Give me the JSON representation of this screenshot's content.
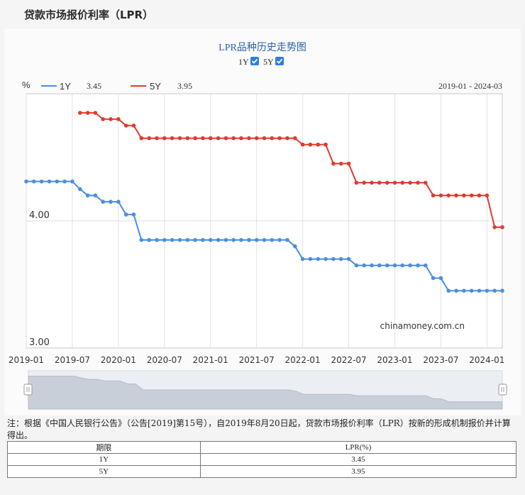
{
  "page": {
    "title": "贷款市场报价利率（LPR）",
    "note": "注：根据《中国人民银行公告》（公告[2019]第15号），自2019年8月20日起，贷款市场报价利率（LPR）按新的形成机制报价并计算得出。"
  },
  "chart_data": {
    "type": "line",
    "title": "LPR品种历史走势图",
    "ylabel": "%",
    "date_range": "2019-01 - 2024-03",
    "watermark": "chinamoney.com.cn",
    "ylim": [
      3.0,
      5.0
    ],
    "yticks": [
      {
        "value": 3.0,
        "label": "3.00"
      },
      {
        "value": 4.0,
        "label": "4.00"
      }
    ],
    "xticks": [
      "2019-01",
      "2019-07",
      "2020-01",
      "2020-07",
      "2021-01",
      "2021-07",
      "2022-01",
      "2022-07",
      "2023-01",
      "2023-07",
      "2024-01"
    ],
    "x_start": "2019-01",
    "grid": true,
    "legend_position": "top-left",
    "series": [
      {
        "name": "1Y",
        "latest": "3.45",
        "checked": true,
        "color": "#4a8ee0",
        "points": [
          [
            "2019-01",
            4.31
          ],
          [
            "2019-02",
            4.31
          ],
          [
            "2019-03",
            4.31
          ],
          [
            "2019-04",
            4.31
          ],
          [
            "2019-05",
            4.31
          ],
          [
            "2019-06",
            4.31
          ],
          [
            "2019-07",
            4.31
          ],
          [
            "2019-08",
            4.25
          ],
          [
            "2019-09",
            4.2
          ],
          [
            "2019-10",
            4.2
          ],
          [
            "2019-11",
            4.15
          ],
          [
            "2019-12",
            4.15
          ],
          [
            "2020-01",
            4.15
          ],
          [
            "2020-02",
            4.05
          ],
          [
            "2020-03",
            4.05
          ],
          [
            "2020-04",
            3.85
          ],
          [
            "2020-05",
            3.85
          ],
          [
            "2020-06",
            3.85
          ],
          [
            "2020-07",
            3.85
          ],
          [
            "2020-08",
            3.85
          ],
          [
            "2020-09",
            3.85
          ],
          [
            "2020-10",
            3.85
          ],
          [
            "2020-11",
            3.85
          ],
          [
            "2020-12",
            3.85
          ],
          [
            "2021-01",
            3.85
          ],
          [
            "2021-02",
            3.85
          ],
          [
            "2021-03",
            3.85
          ],
          [
            "2021-04",
            3.85
          ],
          [
            "2021-05",
            3.85
          ],
          [
            "2021-06",
            3.85
          ],
          [
            "2021-07",
            3.85
          ],
          [
            "2021-08",
            3.85
          ],
          [
            "2021-09",
            3.85
          ],
          [
            "2021-10",
            3.85
          ],
          [
            "2021-11",
            3.85
          ],
          [
            "2021-12",
            3.8
          ],
          [
            "2022-01",
            3.7
          ],
          [
            "2022-02",
            3.7
          ],
          [
            "2022-03",
            3.7
          ],
          [
            "2022-04",
            3.7
          ],
          [
            "2022-05",
            3.7
          ],
          [
            "2022-06",
            3.7
          ],
          [
            "2022-07",
            3.7
          ],
          [
            "2022-08",
            3.65
          ],
          [
            "2022-09",
            3.65
          ],
          [
            "2022-10",
            3.65
          ],
          [
            "2022-11",
            3.65
          ],
          [
            "2022-12",
            3.65
          ],
          [
            "2023-01",
            3.65
          ],
          [
            "2023-02",
            3.65
          ],
          [
            "2023-03",
            3.65
          ],
          [
            "2023-04",
            3.65
          ],
          [
            "2023-05",
            3.65
          ],
          [
            "2023-06",
            3.55
          ],
          [
            "2023-07",
            3.55
          ],
          [
            "2023-08",
            3.45
          ],
          [
            "2023-09",
            3.45
          ],
          [
            "2023-10",
            3.45
          ],
          [
            "2023-11",
            3.45
          ],
          [
            "2023-12",
            3.45
          ],
          [
            "2024-01",
            3.45
          ],
          [
            "2024-02",
            3.45
          ],
          [
            "2024-03",
            3.45
          ]
        ]
      },
      {
        "name": "5Y",
        "latest": "3.95",
        "checked": true,
        "color": "#e03a2f",
        "points": [
          [
            "2019-08",
            4.85
          ],
          [
            "2019-09",
            4.85
          ],
          [
            "2019-10",
            4.85
          ],
          [
            "2019-11",
            4.8
          ],
          [
            "2019-12",
            4.8
          ],
          [
            "2020-01",
            4.8
          ],
          [
            "2020-02",
            4.75
          ],
          [
            "2020-03",
            4.75
          ],
          [
            "2020-04",
            4.65
          ],
          [
            "2020-05",
            4.65
          ],
          [
            "2020-06",
            4.65
          ],
          [
            "2020-07",
            4.65
          ],
          [
            "2020-08",
            4.65
          ],
          [
            "2020-09",
            4.65
          ],
          [
            "2020-10",
            4.65
          ],
          [
            "2020-11",
            4.65
          ],
          [
            "2020-12",
            4.65
          ],
          [
            "2021-01",
            4.65
          ],
          [
            "2021-02",
            4.65
          ],
          [
            "2021-03",
            4.65
          ],
          [
            "2021-04",
            4.65
          ],
          [
            "2021-05",
            4.65
          ],
          [
            "2021-06",
            4.65
          ],
          [
            "2021-07",
            4.65
          ],
          [
            "2021-08",
            4.65
          ],
          [
            "2021-09",
            4.65
          ],
          [
            "2021-10",
            4.65
          ],
          [
            "2021-11",
            4.65
          ],
          [
            "2021-12",
            4.65
          ],
          [
            "2022-01",
            4.6
          ],
          [
            "2022-02",
            4.6
          ],
          [
            "2022-03",
            4.6
          ],
          [
            "2022-04",
            4.6
          ],
          [
            "2022-05",
            4.45
          ],
          [
            "2022-06",
            4.45
          ],
          [
            "2022-07",
            4.45
          ],
          [
            "2022-08",
            4.3
          ],
          [
            "2022-09",
            4.3
          ],
          [
            "2022-10",
            4.3
          ],
          [
            "2022-11",
            4.3
          ],
          [
            "2022-12",
            4.3
          ],
          [
            "2023-01",
            4.3
          ],
          [
            "2023-02",
            4.3
          ],
          [
            "2023-03",
            4.3
          ],
          [
            "2023-04",
            4.3
          ],
          [
            "2023-05",
            4.3
          ],
          [
            "2023-06",
            4.2
          ],
          [
            "2023-07",
            4.2
          ],
          [
            "2023-08",
            4.2
          ],
          [
            "2023-09",
            4.2
          ],
          [
            "2023-10",
            4.2
          ],
          [
            "2023-11",
            4.2
          ],
          [
            "2023-12",
            4.2
          ],
          [
            "2024-01",
            4.2
          ],
          [
            "2024-02",
            3.95
          ],
          [
            "2024-03",
            3.95
          ]
        ]
      }
    ]
  },
  "table": {
    "headers": [
      "期限",
      "LPR(%)"
    ],
    "rows": [
      [
        "1Y",
        "3.45"
      ],
      [
        "5Y",
        "3.95"
      ]
    ]
  }
}
